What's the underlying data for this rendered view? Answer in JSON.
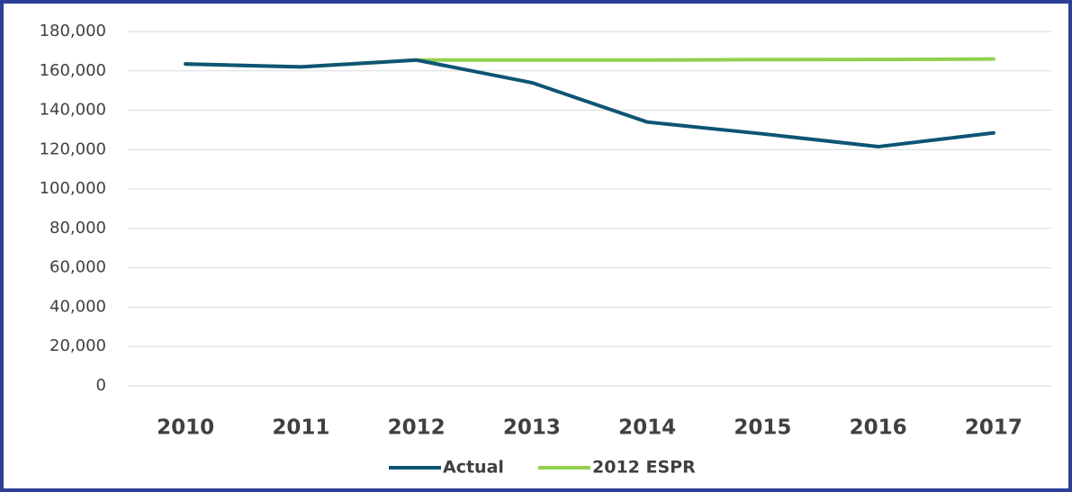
{
  "chart_data": {
    "type": "line",
    "categories": [
      "2010",
      "2011",
      "2012",
      "2013",
      "2014",
      "2015",
      "2016",
      "2017"
    ],
    "series": [
      {
        "name": "Actual",
        "color": "#0e5474",
        "values": [
          163500,
          162000,
          165500,
          154000,
          134000,
          128000,
          121500,
          128500
        ]
      },
      {
        "name": "2012 ESPR",
        "color": "#92d050",
        "values": [
          163500,
          162000,
          165500,
          165500,
          165500,
          165700,
          165800,
          166000
        ]
      }
    ],
    "ylim": [
      0,
      180000
    ],
    "yticks": [
      0,
      {
        "value": 20000,
        "label": "20,000"
      },
      {
        "value": 40000,
        "label": "40,000"
      },
      {
        "value": 60000,
        "label": "60,000"
      },
      {
        "value": 80000,
        "label": "80,000"
      },
      {
        "value": 100000,
        "label": "100,000"
      },
      {
        "value": 120000,
        "label": "120,000"
      },
      {
        "value": 140000,
        "label": "140,000"
      },
      {
        "value": 160000,
        "label": "160,000"
      },
      {
        "value": 180000,
        "label": "180,000"
      }
    ],
    "grid": true,
    "legend": "bottom"
  }
}
